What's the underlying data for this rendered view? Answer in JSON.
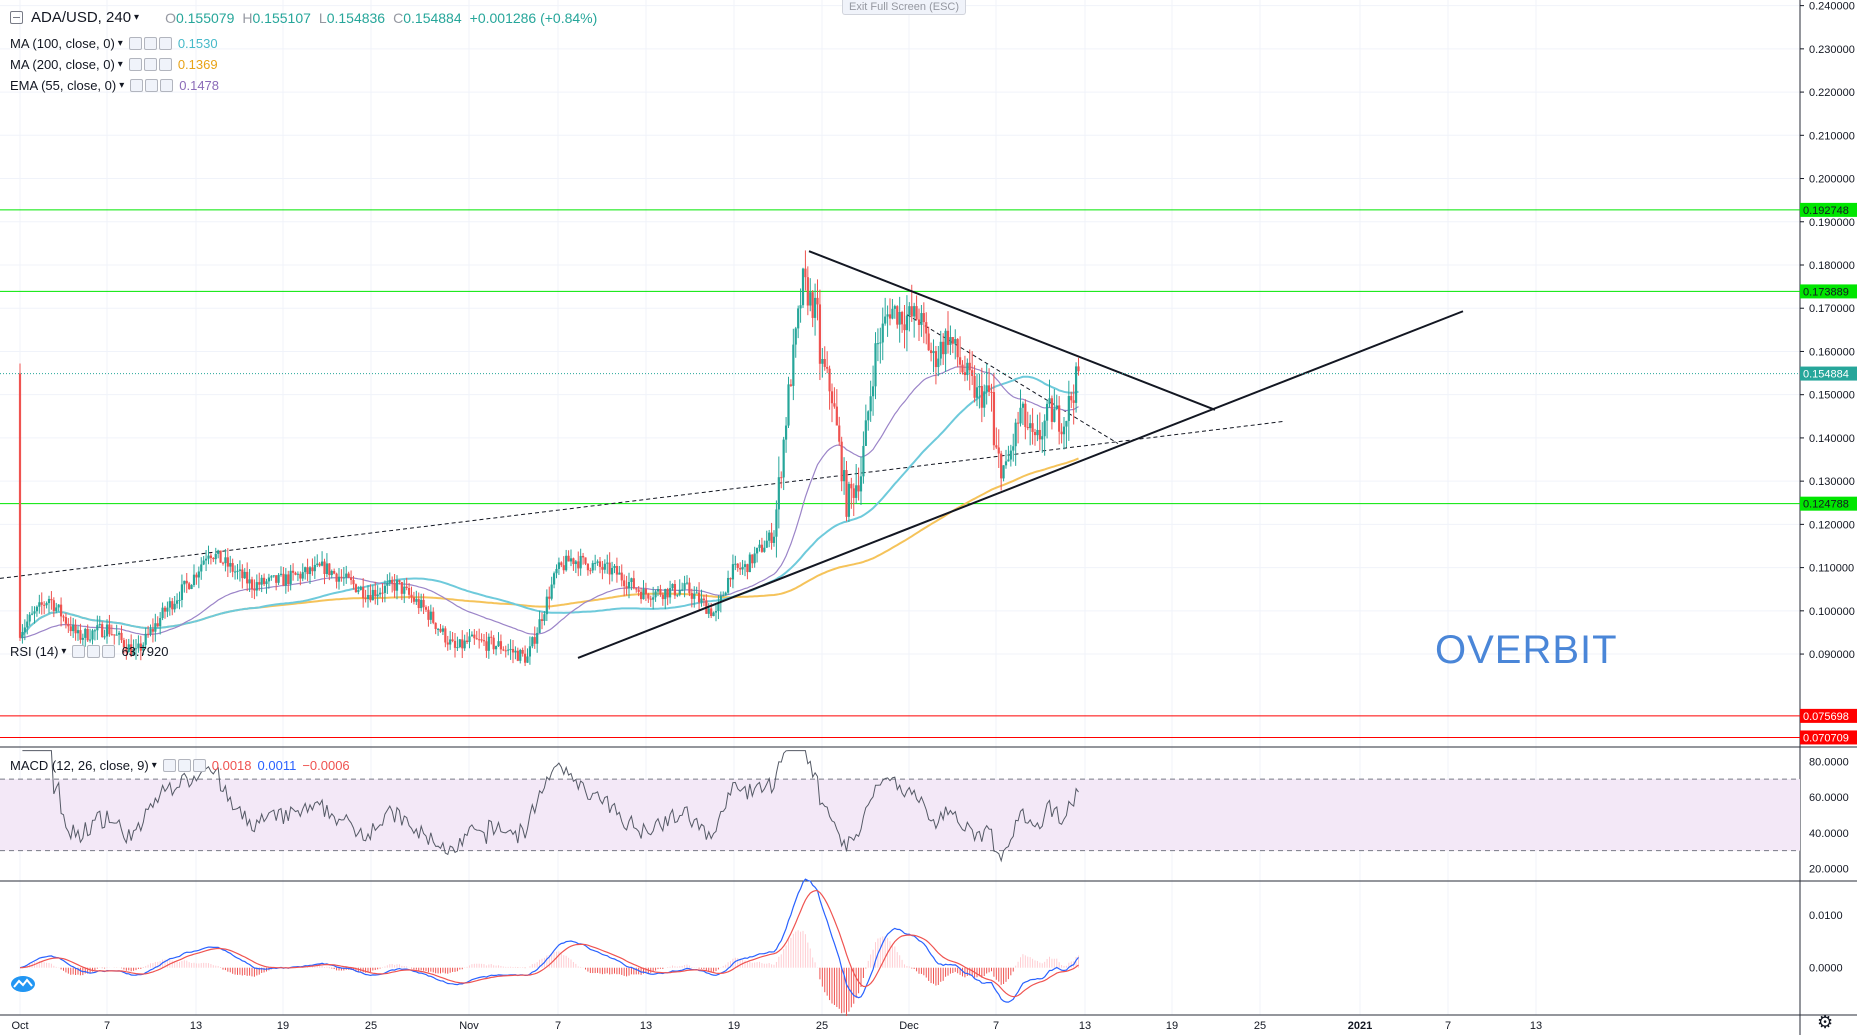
{
  "header": {
    "symbol": "ADA/USD, 240",
    "ohlc": [
      {
        "label": "O",
        "value": "0.155079"
      },
      {
        "label": "H",
        "value": "0.155107"
      },
      {
        "label": "L",
        "value": "0.154836"
      },
      {
        "label": "C",
        "value": "0.154884"
      }
    ],
    "change": "+0.001286 (+0.84%)"
  },
  "indicators": [
    {
      "name": "MA (100, close, 0)",
      "value": "0.1530",
      "color": "#46b9c9"
    },
    {
      "name": "MA (200, close, 0)",
      "value": "0.1369",
      "color": "#f5b937"
    },
    {
      "name": "EMA (55, close, 0)",
      "value": "0.1478",
      "color": "#8b6bb8"
    }
  ],
  "rsi_legend": {
    "name": "RSI (14)",
    "value": "63.7920"
  },
  "macd_legend": {
    "name": "MACD (12, 26, close, 9)",
    "values": [
      {
        "v": "0.0018",
        "color": "#ef5350"
      },
      {
        "v": "0.0011",
        "color": "#2962ff"
      },
      {
        "v": "−0.0006",
        "color": "#ef5350"
      }
    ]
  },
  "exit_fullscreen": "Exit Full Screen (ESC)",
  "watermark": "OVERBIT",
  "colors": {
    "up": "#26a69a",
    "down": "#ef5350",
    "support": "#00e600",
    "resistance": "#ff0000"
  },
  "chart_data": {
    "type": "candlestick",
    "price_axis": [
      "0.240000",
      "0.230000",
      "0.220000",
      "0.210000",
      "0.200000",
      "0.190000",
      "0.180000",
      "0.170000",
      "0.160000",
      "0.150000",
      "0.140000",
      "0.130000",
      "0.120000",
      "0.110000",
      "0.100000",
      "0.090000"
    ],
    "price_range": [
      0.0685,
      0.2413
    ],
    "time_axis": [
      "Oct",
      "7",
      "13",
      "19",
      "25",
      "Nov",
      "7",
      "13",
      "19",
      "25",
      "Dec",
      "7",
      "13",
      "19",
      "25",
      "2021",
      "7",
      "13"
    ],
    "horizontal_levels": [
      {
        "label": "0.192748",
        "value": 0.192748,
        "color": "#00e600"
      },
      {
        "label": "0.173889",
        "value": 0.173889,
        "color": "#00e600"
      },
      {
        "label": "0.124788",
        "value": 0.124788,
        "color": "#00e600"
      },
      {
        "label": "0.075698",
        "value": 0.075698,
        "color": "#ff0000"
      },
      {
        "label": "0.070709",
        "value": 0.070709,
        "color": "#ff0000"
      }
    ],
    "last_price": {
      "label": "0.154884",
      "value": 0.154884
    },
    "candles_summary": [
      [
        "Oct",
        0.0955
      ],
      [
        "7",
        0.096
      ],
      [
        "13",
        0.108
      ],
      [
        "19",
        0.107
      ],
      [
        "25",
        0.104
      ],
      [
        "Nov",
        0.093
      ],
      [
        "7",
        0.109
      ],
      [
        "13",
        0.104
      ],
      [
        "19",
        0.109
      ],
      [
        "25",
        0.168
      ],
      [
        "Dec",
        0.168
      ],
      [
        "7",
        0.15
      ],
      [
        "13",
        0.1549
      ]
    ],
    "rsi": {
      "axis": [
        "80.0000",
        "60.0000",
        "40.0000",
        "20.0000"
      ],
      "range": [
        13,
        88
      ],
      "upper": 70,
      "lower": 30
    },
    "macd": {
      "axis": [
        "0.0100",
        "0.0000"
      ],
      "range": [
        -0.009,
        0.0165
      ]
    }
  }
}
